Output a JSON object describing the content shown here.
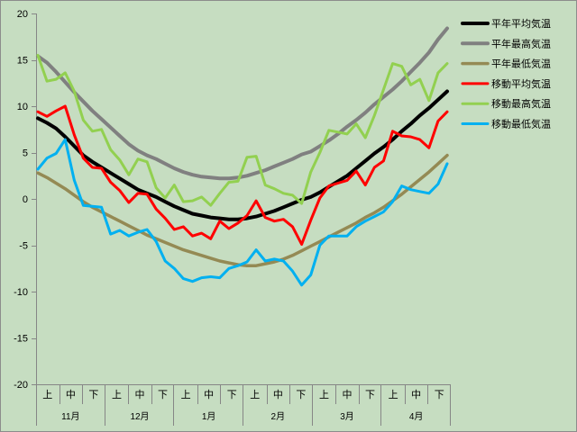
{
  "chart_data": {
    "type": "line",
    "ylim": [
      -20,
      20
    ],
    "grid": false,
    "legend_position": "right",
    "y_axis": {
      "ticks": [
        20,
        15,
        10,
        5,
        0,
        -5,
        -10,
        -15,
        -20
      ]
    },
    "x_axis": {
      "groups": [
        {
          "label": "11月",
          "items": [
            "上",
            "中",
            "下"
          ]
        },
        {
          "label": "12月",
          "items": [
            "上",
            "中",
            "下"
          ]
        },
        {
          "label": "1月",
          "items": [
            "上",
            "中",
            "下"
          ]
        },
        {
          "label": "2月",
          "items": [
            "上",
            "中",
            "下"
          ]
        },
        {
          "label": "3月",
          "items": [
            "上",
            "中",
            "下"
          ]
        },
        {
          "label": "4月",
          "items": [
            "上",
            "中",
            "下"
          ]
        }
      ]
    },
    "series": [
      {
        "name": "平年平均気温",
        "color": "#000000",
        "values": [
          8.7,
          8.2,
          7.6,
          6.7,
          5.7,
          4.7,
          4.0,
          3.4,
          2.8,
          2.2,
          1.6,
          1.0,
          0.6,
          0.2,
          -0.3,
          -0.8,
          -1.2,
          -1.6,
          -1.8,
          -2.0,
          -2.1,
          -2.2,
          -2.2,
          -2.1,
          -1.9,
          -1.6,
          -1.3,
          -0.9,
          -0.5,
          -0.1,
          0.2,
          0.7,
          1.3,
          1.9,
          2.5,
          3.3,
          4.1,
          4.9,
          5.6,
          6.4,
          7.3,
          8.1,
          9.0,
          9.8,
          10.7,
          11.6
        ]
      },
      {
        "name": "平年最高気温",
        "color": "#808080",
        "values": [
          15.4,
          14.7,
          13.7,
          12.6,
          11.5,
          10.5,
          9.5,
          8.6,
          7.7,
          6.8,
          5.9,
          5.2,
          4.7,
          4.3,
          3.8,
          3.3,
          2.9,
          2.6,
          2.4,
          2.3,
          2.2,
          2.2,
          2.3,
          2.5,
          2.8,
          3.1,
          3.5,
          3.9,
          4.3,
          4.8,
          5.1,
          5.7,
          6.3,
          7.0,
          7.8,
          8.5,
          9.3,
          10.2,
          11.0,
          11.8,
          12.7,
          13.7,
          14.7,
          15.8,
          17.2,
          18.4
        ]
      },
      {
        "name": "平年最低気温",
        "color": "#948a54",
        "values": [
          2.8,
          2.3,
          1.7,
          1.1,
          0.4,
          -0.3,
          -0.9,
          -1.4,
          -1.9,
          -2.4,
          -2.9,
          -3.4,
          -3.9,
          -4.3,
          -4.7,
          -5.1,
          -5.5,
          -5.8,
          -6.1,
          -6.4,
          -6.7,
          -6.9,
          -7.1,
          -7.2,
          -7.2,
          -7.0,
          -6.8,
          -6.5,
          -6.1,
          -5.6,
          -5.1,
          -4.6,
          -4.1,
          -3.6,
          -3.1,
          -2.6,
          -2.0,
          -1.5,
          -0.9,
          -0.2,
          0.5,
          1.3,
          2.1,
          2.9,
          3.8,
          4.7
        ]
      },
      {
        "name": "移動平均気温",
        "color": "#ff0000",
        "values": [
          9.4,
          8.9,
          9.5,
          10.0,
          6.9,
          4.4,
          3.4,
          3.3,
          1.8,
          0.9,
          -0.4,
          0.6,
          0.5,
          -1.1,
          -2.1,
          -3.3,
          -3.0,
          -4.0,
          -3.7,
          -4.3,
          -2.4,
          -3.2,
          -2.6,
          -1.8,
          -0.2,
          -2.0,
          -2.4,
          -2.2,
          -3.0,
          -4.9,
          -2.3,
          0.1,
          1.4,
          1.7,
          2.0,
          3.0,
          1.5,
          3.4,
          4.1,
          7.3,
          6.8,
          6.7,
          6.4,
          5.5,
          8.4,
          9.4
        ]
      },
      {
        "name": "移動最高気温",
        "color": "#92d050",
        "values": [
          15.5,
          12.7,
          12.9,
          13.6,
          11.6,
          8.5,
          7.3,
          7.5,
          5.3,
          4.2,
          2.6,
          4.3,
          4.0,
          1.2,
          0.1,
          1.5,
          -0.3,
          -0.2,
          0.2,
          -0.7,
          0.6,
          1.8,
          1.9,
          4.5,
          4.6,
          1.5,
          1.1,
          0.6,
          0.4,
          -0.5,
          2.9,
          5.0,
          7.4,
          7.2,
          7.0,
          8.1,
          6.6,
          9.0,
          11.8,
          14.6,
          14.3,
          12.3,
          12.9,
          10.6,
          13.6,
          14.6
        ]
      },
      {
        "name": "移動最低気温",
        "color": "#00b0f0",
        "values": [
          3.2,
          4.4,
          4.9,
          6.4,
          2.0,
          -0.7,
          -0.8,
          -0.9,
          -3.8,
          -3.4,
          -4.0,
          -3.6,
          -3.3,
          -4.6,
          -6.7,
          -7.5,
          -8.6,
          -8.9,
          -8.5,
          -8.4,
          -8.5,
          -7.5,
          -7.2,
          -6.8,
          -5.5,
          -6.7,
          -6.5,
          -6.7,
          -7.8,
          -9.3,
          -8.2,
          -5.0,
          -4.0,
          -4.0,
          -4.0,
          -3.0,
          -2.4,
          -1.9,
          -1.4,
          -0.3,
          1.4,
          1.0,
          0.8,
          0.6,
          1.6,
          3.8
        ]
      }
    ]
  }
}
